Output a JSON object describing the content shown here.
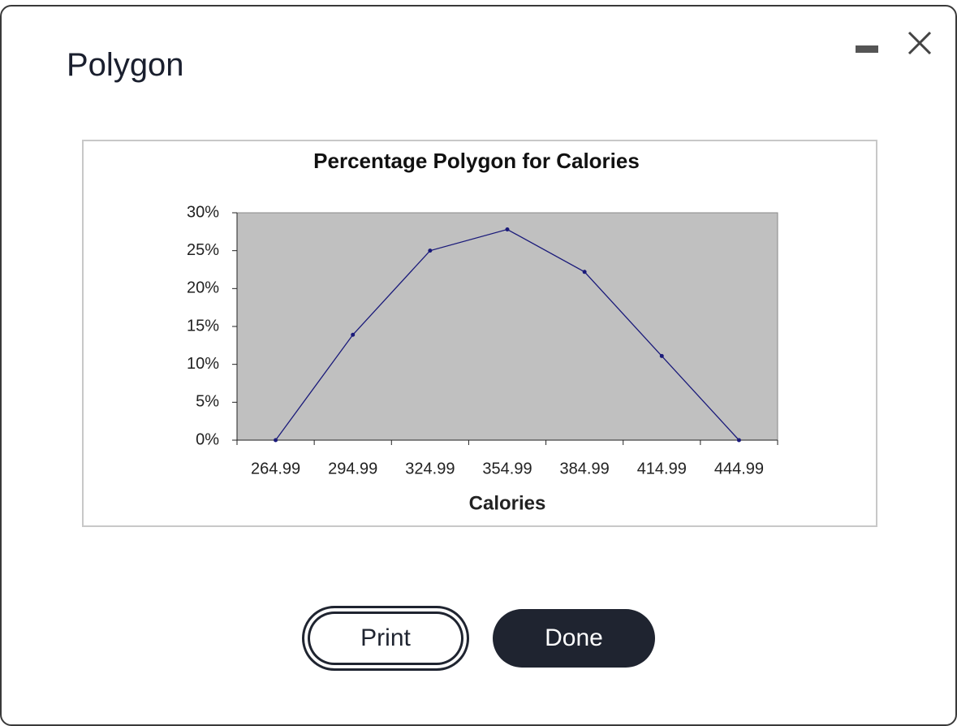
{
  "dialog": {
    "title": "Polygon",
    "print": "Print",
    "done": "Done"
  },
  "chart_data": {
    "type": "line",
    "title": "Percentage Polygon for Calories",
    "x_label": "Calories",
    "categories": [
      "264.99",
      "294.99",
      "324.99",
      "354.99",
      "384.99",
      "414.99",
      "444.99"
    ],
    "values": [
      0,
      13.9,
      25,
      27.8,
      22.2,
      11.1,
      0
    ],
    "color": "#1a1a7a",
    "ylim": [
      0,
      30
    ],
    "yticks": [
      {
        "value": 0,
        "label": "0%"
      },
      {
        "value": 5,
        "label": "5%"
      },
      {
        "value": 10,
        "label": "10%"
      },
      {
        "value": 15,
        "label": "15%"
      },
      {
        "value": 20,
        "label": "20%"
      },
      {
        "value": 25,
        "label": "25%"
      },
      {
        "value": 30,
        "label": "30%"
      }
    ]
  }
}
